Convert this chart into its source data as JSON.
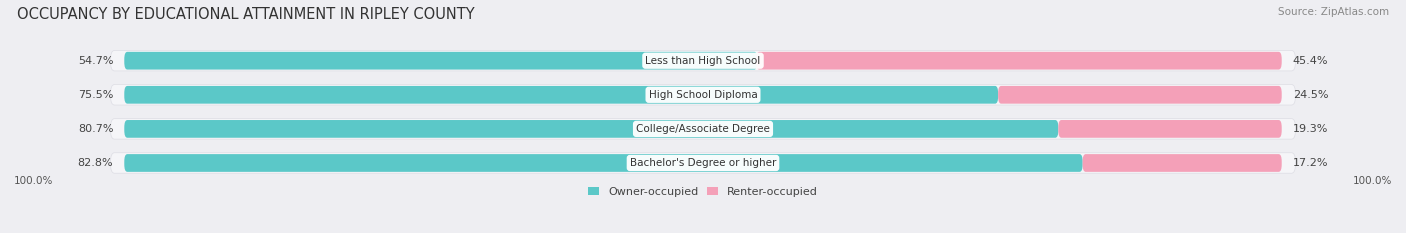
{
  "title": "OCCUPANCY BY EDUCATIONAL ATTAINMENT IN RIPLEY COUNTY",
  "source": "Source: ZipAtlas.com",
  "categories": [
    "Less than High School",
    "High School Diploma",
    "College/Associate Degree",
    "Bachelor's Degree or higher"
  ],
  "owner_pct": [
    54.7,
    75.5,
    80.7,
    82.8
  ],
  "renter_pct": [
    45.4,
    24.5,
    19.3,
    17.2
  ],
  "owner_color": "#5BC8C8",
  "renter_color": "#F4A0B8",
  "bg_color": "#EEEEF2",
  "band_color": "#F5F5F8",
  "band_edge_color": "#DDDDE4",
  "title_fontsize": 10.5,
  "source_fontsize": 7.5,
  "bar_label_fontsize": 8,
  "category_fontsize": 7.5,
  "legend_fontsize": 8,
  "axis_label_fontsize": 7.5,
  "left_axis_label": "100.0%",
  "right_axis_label": "100.0%"
}
